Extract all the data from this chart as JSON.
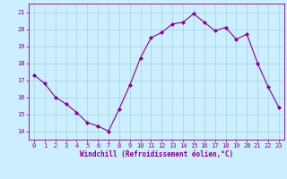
{
  "x": [
    0,
    1,
    2,
    3,
    4,
    5,
    6,
    7,
    8,
    9,
    10,
    11,
    12,
    13,
    14,
    15,
    16,
    17,
    18,
    19,
    20,
    21,
    22,
    23
  ],
  "y": [
    17.3,
    16.8,
    16.0,
    15.6,
    15.1,
    14.5,
    14.3,
    14.0,
    15.3,
    16.7,
    18.3,
    19.5,
    19.8,
    20.3,
    20.4,
    20.9,
    20.4,
    19.9,
    20.1,
    19.4,
    19.7,
    18.0,
    16.6,
    15.4
  ],
  "line_color": "#880088",
  "marker": "D",
  "marker_size": 2.0,
  "bg_color": "#cceeff",
  "grid_color": "#99cccc",
  "xlabel": "Windchill (Refroidissement éolien,°C)",
  "xlabel_color": "#880088",
  "tick_color": "#880088",
  "ylim": [
    13.5,
    21.5
  ],
  "xlim": [
    -0.5,
    23.5
  ],
  "yticks": [
    14,
    15,
    16,
    17,
    18,
    19,
    20,
    21
  ],
  "xticks": [
    0,
    1,
    2,
    3,
    4,
    5,
    6,
    7,
    8,
    9,
    10,
    11,
    12,
    13,
    14,
    15,
    16,
    17,
    18,
    19,
    20,
    21,
    22,
    23
  ],
  "tick_fontsize": 5.0,
  "xlabel_fontsize": 5.5,
  "linewidth": 0.8
}
